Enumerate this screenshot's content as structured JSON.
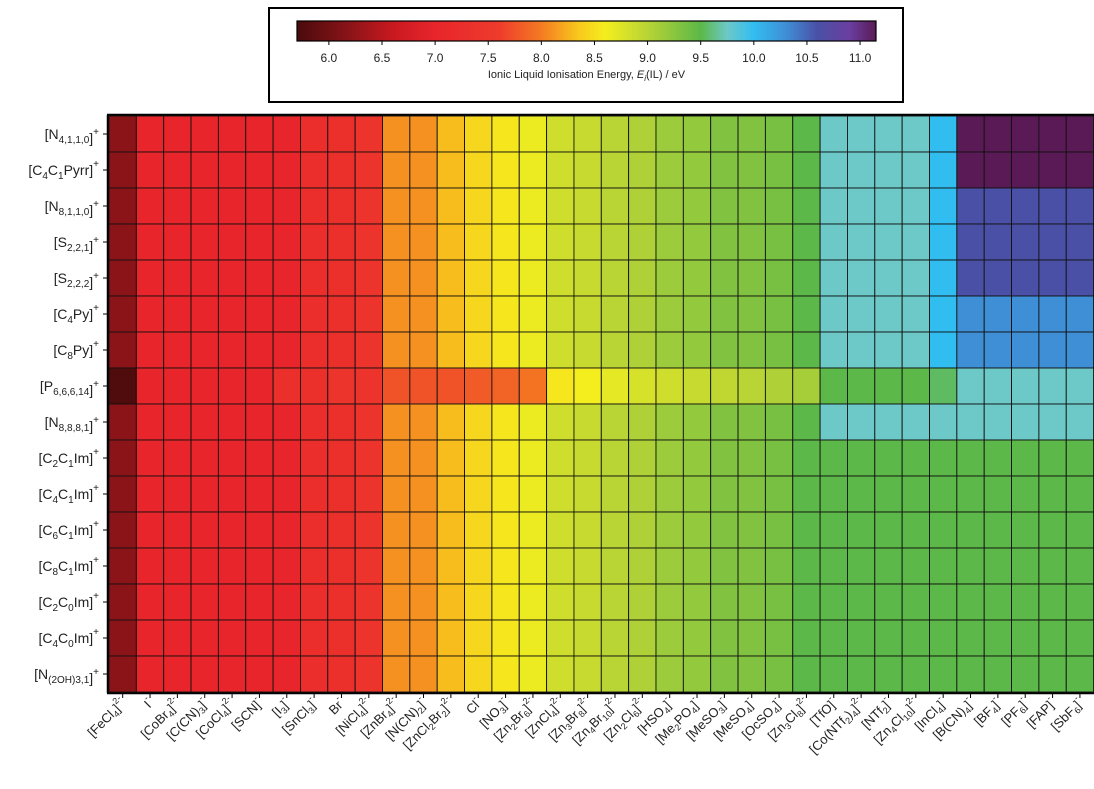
{
  "chart_data": {
    "type": "heatmap",
    "colorbar": {
      "label": "Ionic Liquid Ionisation Energy, E_i(IL) / eV",
      "ticks": [
        "6.0",
        "6.5",
        "7.0",
        "7.5",
        "8.0",
        "8.5",
        "9.0",
        "9.5",
        "10.0",
        "10.5",
        "11.0"
      ],
      "range": [
        5.7,
        11.15
      ],
      "stops": [
        {
          "v": 5.7,
          "c": "#4a0a0c"
        },
        {
          "v": 6.2,
          "c": "#8b1418"
        },
        {
          "v": 6.6,
          "c": "#c8191f"
        },
        {
          "v": 7.0,
          "c": "#e8252b"
        },
        {
          "v": 7.6,
          "c": "#ee3b2c"
        },
        {
          "v": 8.0,
          "c": "#f47b22"
        },
        {
          "v": 8.35,
          "c": "#f8c81c"
        },
        {
          "v": 8.6,
          "c": "#f4ee1e"
        },
        {
          "v": 9.0,
          "c": "#b8d435"
        },
        {
          "v": 9.5,
          "c": "#5cb848"
        },
        {
          "v": 9.75,
          "c": "#6cc9c8"
        },
        {
          "v": 10.0,
          "c": "#32bdf0"
        },
        {
          "v": 10.3,
          "c": "#3f8fd6"
        },
        {
          "v": 10.6,
          "c": "#4a50a6"
        },
        {
          "v": 10.9,
          "c": "#6a3fa0"
        },
        {
          "v": 11.15,
          "c": "#5a1a55"
        }
      ]
    },
    "y_labels": [
      {
        "main": "[N",
        "sub": "4,1,1,0",
        "sup": "+",
        "tail": "]"
      },
      {
        "main": "[C",
        "sub": "4",
        "main2": "C",
        "sub2": "1",
        "main3": "Pyrr",
        "sup": "+",
        "tail": "]"
      },
      {
        "main": "[N",
        "sub": "8,1,1,0",
        "sup": "+",
        "tail": "]"
      },
      {
        "main": "[S",
        "sub": "2,2,1",
        "sup": "+",
        "tail": "]"
      },
      {
        "main": "[S",
        "sub": "2,2,2",
        "sup": "+",
        "tail": "]"
      },
      {
        "main": "[C",
        "sub": "4",
        "main2": "Py",
        "sup": "+",
        "tail": "]"
      },
      {
        "main": "[C",
        "sub": "8",
        "main2": "Py",
        "sup": "+",
        "tail": "]"
      },
      {
        "main": "[P",
        "sub": "6,6,6,14",
        "sup": "+",
        "tail": "]"
      },
      {
        "main": "[N",
        "sub": "8,8,8,1",
        "sup": "+",
        "tail": "]"
      },
      {
        "main": "[C",
        "sub": "2",
        "main2": "C",
        "sub2": "1",
        "main3": "Im",
        "sup": "+",
        "tail": "]"
      },
      {
        "main": "[C",
        "sub": "4",
        "main2": "C",
        "sub2": "1",
        "main3": "Im",
        "sup": "+",
        "tail": "]"
      },
      {
        "main": "[C",
        "sub": "6",
        "main2": "C",
        "sub2": "1",
        "main3": "Im",
        "sup": "+",
        "tail": "]"
      },
      {
        "main": "[C",
        "sub": "8",
        "main2": "C",
        "sub2": "1",
        "main3": "Im",
        "sup": "+",
        "tail": "]"
      },
      {
        "main": "[C",
        "sub": "2",
        "main2": "C",
        "sub2": "0",
        "main3": "Im",
        "sup": "+",
        "tail": "]"
      },
      {
        "main": "[C",
        "sub": "4",
        "main2": "C",
        "sub2": "0",
        "main3": "Im",
        "sup": "+",
        "tail": "]"
      },
      {
        "main": "[N",
        "sub": "(2OH)3,1",
        "sup": "+",
        "tail": "]"
      }
    ],
    "x_labels": [
      "[FeCl4]2-",
      "I-",
      "[CoBr4]2-",
      "[C(CN)3]-",
      "[CoCl4]2-",
      "[SCN]-",
      "[I3]-",
      "[SnCl3]-",
      "Br-",
      "[NiCl4]2-",
      "[ZnBr4]2-",
      "[N(CN)2]-",
      "[ZnCl2Br2]2-",
      "Cl-",
      "[NO3]-",
      "[Zn2Br6]2-",
      "[ZnCl4]2-",
      "[Zn3Br8]2-",
      "[Zn4Br10]2-",
      "[Zn2Cl6]2-",
      "[HSO4]-",
      "[Me2PO4]-",
      "[MeSO3]-",
      "[MeSO4]-",
      "[OcSO4]-",
      "[Zn3Cl8]2-",
      "[TfO]-",
      "[Co(NTf2)4]2-",
      "[NTf2]-",
      "[Zn4Cl10]2-",
      "[InCl4]-",
      "[B(CN)4]-",
      "[BF4]-",
      "[PF6]-",
      "[FAP]-",
      "[SbF6]-"
    ],
    "values": [
      [
        6.2,
        7.0,
        7.0,
        7.0,
        7.0,
        7.0,
        7.0,
        7.25,
        7.3,
        7.4,
        8.1,
        8.1,
        8.3,
        8.45,
        8.55,
        8.65,
        8.85,
        8.9,
        9.0,
        9.05,
        9.15,
        9.2,
        9.3,
        9.3,
        9.35,
        9.5,
        9.75,
        9.75,
        9.75,
        9.75,
        10.0,
        11.15,
        11.15,
        11.15,
        11.15,
        11.15
      ],
      [
        6.2,
        7.0,
        7.0,
        7.0,
        7.0,
        7.0,
        7.0,
        7.25,
        7.3,
        7.4,
        8.1,
        8.1,
        8.3,
        8.45,
        8.55,
        8.65,
        8.85,
        8.9,
        9.0,
        9.05,
        9.15,
        9.2,
        9.3,
        9.3,
        9.35,
        9.5,
        9.75,
        9.75,
        9.75,
        9.75,
        10.0,
        11.15,
        11.15,
        11.15,
        11.15,
        11.15
      ],
      [
        6.2,
        7.0,
        7.0,
        7.0,
        7.0,
        7.0,
        7.0,
        7.25,
        7.3,
        7.4,
        8.1,
        8.1,
        8.3,
        8.45,
        8.55,
        8.65,
        8.85,
        8.9,
        9.0,
        9.05,
        9.15,
        9.2,
        9.3,
        9.3,
        9.35,
        9.5,
        9.75,
        9.75,
        9.75,
        9.75,
        10.0,
        10.6,
        10.6,
        10.6,
        10.6,
        10.6
      ],
      [
        6.2,
        7.0,
        7.0,
        7.0,
        7.0,
        7.0,
        7.0,
        7.25,
        7.3,
        7.4,
        8.1,
        8.1,
        8.3,
        8.45,
        8.55,
        8.65,
        8.85,
        8.9,
        9.0,
        9.05,
        9.15,
        9.2,
        9.3,
        9.3,
        9.35,
        9.5,
        9.75,
        9.75,
        9.75,
        9.75,
        10.0,
        10.6,
        10.6,
        10.6,
        10.6,
        10.6
      ],
      [
        6.2,
        7.0,
        7.0,
        7.0,
        7.0,
        7.0,
        7.0,
        7.25,
        7.3,
        7.4,
        8.1,
        8.1,
        8.3,
        8.45,
        8.55,
        8.65,
        8.85,
        8.9,
        9.0,
        9.05,
        9.15,
        9.2,
        9.3,
        9.3,
        9.35,
        9.5,
        9.75,
        9.75,
        9.75,
        9.75,
        10.0,
        10.6,
        10.6,
        10.6,
        10.6,
        10.6
      ],
      [
        6.2,
        7.0,
        7.0,
        7.0,
        7.0,
        7.0,
        7.0,
        7.25,
        7.3,
        7.4,
        8.1,
        8.1,
        8.3,
        8.45,
        8.55,
        8.65,
        8.85,
        8.9,
        9.0,
        9.05,
        9.15,
        9.2,
        9.3,
        9.3,
        9.35,
        9.5,
        9.75,
        9.75,
        9.75,
        9.75,
        10.0,
        10.3,
        10.3,
        10.3,
        10.3,
        10.3
      ],
      [
        6.2,
        7.0,
        7.0,
        7.0,
        7.0,
        7.0,
        7.0,
        7.25,
        7.3,
        7.4,
        8.1,
        8.1,
        8.3,
        8.45,
        8.55,
        8.65,
        8.85,
        8.9,
        9.0,
        9.05,
        9.15,
        9.2,
        9.3,
        9.3,
        9.35,
        9.5,
        9.75,
        9.75,
        9.75,
        9.75,
        10.0,
        10.3,
        10.3,
        10.3,
        10.3,
        10.3
      ],
      [
        5.75,
        7.0,
        7.0,
        7.0,
        7.0,
        7.0,
        7.3,
        7.3,
        7.4,
        7.4,
        7.75,
        7.75,
        7.75,
        7.8,
        7.85,
        7.95,
        8.55,
        8.6,
        8.7,
        8.8,
        8.85,
        8.9,
        8.95,
        9.0,
        9.05,
        9.1,
        9.5,
        9.5,
        9.5,
        9.5,
        9.55,
        9.75,
        9.75,
        9.75,
        9.75,
        9.75
      ],
      [
        6.2,
        7.0,
        7.0,
        7.0,
        7.0,
        7.0,
        7.0,
        7.25,
        7.3,
        7.4,
        8.1,
        8.1,
        8.3,
        8.45,
        8.55,
        8.65,
        8.85,
        8.9,
        9.0,
        9.05,
        9.15,
        9.2,
        9.3,
        9.3,
        9.35,
        9.5,
        9.75,
        9.75,
        9.75,
        9.75,
        9.75,
        9.75,
        9.75,
        9.75,
        9.75,
        9.75
      ],
      [
        6.2,
        7.0,
        7.0,
        7.0,
        7.0,
        7.0,
        7.0,
        7.25,
        7.3,
        7.4,
        8.1,
        8.1,
        8.3,
        8.45,
        8.55,
        8.65,
        8.85,
        8.9,
        9.0,
        9.05,
        9.15,
        9.2,
        9.3,
        9.3,
        9.35,
        9.5,
        9.5,
        9.5,
        9.5,
        9.5,
        9.5,
        9.5,
        9.5,
        9.5,
        9.5,
        9.5
      ],
      [
        6.2,
        7.0,
        7.0,
        7.0,
        7.0,
        7.0,
        7.0,
        7.25,
        7.3,
        7.4,
        8.1,
        8.1,
        8.3,
        8.45,
        8.55,
        8.65,
        8.85,
        8.9,
        9.0,
        9.05,
        9.15,
        9.2,
        9.3,
        9.3,
        9.35,
        9.5,
        9.5,
        9.5,
        9.5,
        9.5,
        9.5,
        9.5,
        9.5,
        9.5,
        9.5,
        9.5
      ],
      [
        6.2,
        7.0,
        7.0,
        7.0,
        7.0,
        7.0,
        7.0,
        7.25,
        7.3,
        7.4,
        8.1,
        8.1,
        8.3,
        8.45,
        8.55,
        8.65,
        8.85,
        8.9,
        9.0,
        9.05,
        9.15,
        9.2,
        9.3,
        9.3,
        9.35,
        9.5,
        9.5,
        9.5,
        9.5,
        9.5,
        9.5,
        9.5,
        9.5,
        9.5,
        9.5,
        9.5
      ],
      [
        6.2,
        7.0,
        7.0,
        7.0,
        7.0,
        7.0,
        7.0,
        7.25,
        7.3,
        7.4,
        8.1,
        8.1,
        8.3,
        8.45,
        8.55,
        8.65,
        8.85,
        8.9,
        9.0,
        9.05,
        9.15,
        9.2,
        9.3,
        9.3,
        9.35,
        9.5,
        9.5,
        9.5,
        9.5,
        9.5,
        9.5,
        9.5,
        9.5,
        9.5,
        9.5,
        9.5
      ],
      [
        6.2,
        7.0,
        7.0,
        7.0,
        7.0,
        7.0,
        7.0,
        7.25,
        7.3,
        7.4,
        8.1,
        8.1,
        8.3,
        8.45,
        8.55,
        8.65,
        8.85,
        8.9,
        9.0,
        9.05,
        9.15,
        9.2,
        9.3,
        9.3,
        9.35,
        9.5,
        9.5,
        9.5,
        9.5,
        9.5,
        9.5,
        9.5,
        9.5,
        9.5,
        9.5,
        9.5
      ],
      [
        6.2,
        7.0,
        7.0,
        7.0,
        7.0,
        7.0,
        7.0,
        7.25,
        7.3,
        7.4,
        8.1,
        8.1,
        8.3,
        8.45,
        8.55,
        8.65,
        8.85,
        8.9,
        9.0,
        9.05,
        9.15,
        9.2,
        9.3,
        9.3,
        9.35,
        9.5,
        9.5,
        9.5,
        9.5,
        9.5,
        9.5,
        9.5,
        9.5,
        9.5,
        9.5,
        9.5
      ],
      [
        6.2,
        7.0,
        7.0,
        7.0,
        7.0,
        7.0,
        7.0,
        7.25,
        7.3,
        7.4,
        8.1,
        8.1,
        8.3,
        8.45,
        8.55,
        8.65,
        8.85,
        8.9,
        9.0,
        9.05,
        9.15,
        9.2,
        9.3,
        9.3,
        9.35,
        9.5,
        9.5,
        9.5,
        9.5,
        9.5,
        9.5,
        9.5,
        9.5,
        9.5,
        9.5,
        9.5
      ]
    ]
  }
}
